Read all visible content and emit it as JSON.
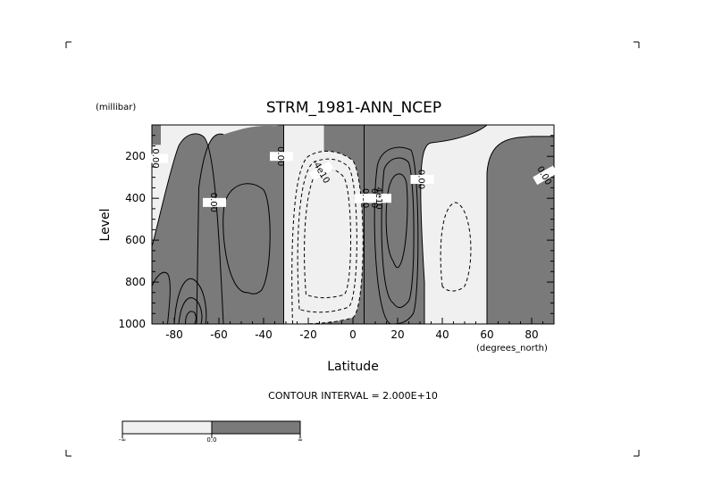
{
  "chart_data": {
    "type": "contour",
    "title": "STRM_1981-ANN_NCEP",
    "xlabel": "Latitude",
    "ylabel": "Level",
    "x_units": "(degrees_north)",
    "y_units": "(millibar)",
    "xlim": [
      -90,
      90
    ],
    "ylim": [
      1000,
      50
    ],
    "y_inverted": true,
    "x_ticks": [
      -80,
      -60,
      -40,
      -20,
      0,
      20,
      40,
      60,
      80
    ],
    "x_tick_labels": [
      "-80",
      "-60",
      "-40",
      "-20",
      "0",
      "20",
      "40",
      "60",
      "80"
    ],
    "y_ticks": [
      200,
      400,
      600,
      800,
      1000
    ],
    "y_tick_labels": [
      "200",
      "400",
      "600",
      "800",
      "1000"
    ],
    "contour_interval_text": "CONTOUR INTERVAL = 2.000E+10",
    "contour_interval": 20000000000,
    "contour_labels": [
      {
        "text": "0.00",
        "x": -88,
        "y": 210,
        "rotation": 90
      },
      {
        "text": "0.00",
        "x": -62,
        "y": 420,
        "rotation": 90
      },
      {
        "text": "0.00",
        "x": -32,
        "y": 200,
        "rotation": 90
      },
      {
        "text": "-4e10",
        "x": -14,
        "y": 270,
        "rotation": 60
      },
      {
        "text": "0.00",
        "x": 6,
        "y": 400,
        "rotation": 90
      },
      {
        "text": "0.00",
        "x": 10,
        "y": 400,
        "rotation": 90
      },
      {
        "text": "4e10",
        "x": 12,
        "y": 400,
        "rotation": 90
      },
      {
        "text": "0.00",
        "x": 31,
        "y": 310,
        "rotation": 90
      },
      {
        "text": "0.00",
        "x": 86,
        "y": 290,
        "rotation": 60
      }
    ],
    "shading": {
      "negative_color": "#f0f0f0",
      "positive_color": "#7a7a7a",
      "threshold": 0
    },
    "colorbar_labels": [
      "-∞",
      "0.0",
      "∞"
    ],
    "regions": [
      {
        "sign": "positive",
        "lat": [
          -70,
          -60
        ],
        "lev": [
          100,
          1000
        ]
      },
      {
        "sign": "positive",
        "lat": [
          -60,
          -30
        ],
        "lev": [
          100,
          1000
        ]
      },
      {
        "sign": "positive",
        "lat": [
          0,
          30
        ],
        "lev": [
          100,
          1000
        ]
      },
      {
        "sign": "positive",
        "lat": [
          60,
          90
        ],
        "lev": [
          100,
          1000
        ]
      },
      {
        "sign": "negative",
        "lat": [
          -25,
          5
        ],
        "lev": [
          250,
          1000
        ]
      },
      {
        "sign": "negative",
        "lat": [
          42,
          53
        ],
        "lev": [
          450,
          800
        ]
      }
    ]
  }
}
